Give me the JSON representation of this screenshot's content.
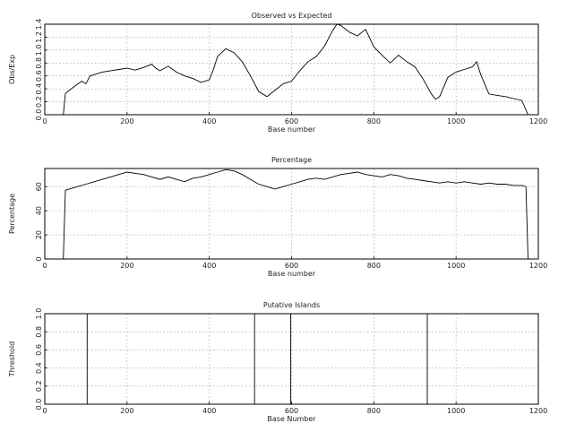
{
  "chart_data": [
    {
      "type": "line",
      "title": "Observed vs Expected",
      "xlabel": "Base number",
      "ylabel": "Obs/Exp",
      "xlim": [
        0,
        1200
      ],
      "ylim": [
        0,
        1.4
      ],
      "xticks": [
        0,
        200,
        400,
        600,
        800,
        1000,
        1200
      ],
      "yticks": [
        0,
        0.2,
        0.4,
        0.6,
        0.8,
        1.0,
        1.2,
        1.4
      ],
      "ytick_labels": [
        "0.0",
        "0.2",
        "0.4",
        "0.6",
        "0.8",
        "1.0",
        "1.2",
        "1.4"
      ],
      "grid": true,
      "x": [
        45,
        50,
        60,
        75,
        90,
        100,
        110,
        120,
        140,
        160,
        180,
        200,
        220,
        240,
        260,
        270,
        280,
        300,
        320,
        340,
        360,
        380,
        400,
        410,
        420,
        440,
        460,
        480,
        500,
        520,
        540,
        560,
        580,
        600,
        620,
        640,
        660,
        680,
        700,
        710,
        720,
        740,
        760,
        780,
        800,
        820,
        840,
        860,
        880,
        900,
        920,
        940,
        950,
        960,
        980,
        1000,
        1020,
        1040,
        1050,
        1060,
        1080,
        1100,
        1120,
        1140,
        1160,
        1175
      ],
      "series": [
        {
          "values": [
            0,
            0.33,
            0.38,
            0.45,
            0.52,
            0.48,
            0.6,
            0.62,
            0.66,
            0.68,
            0.7,
            0.72,
            0.69,
            0.73,
            0.78,
            0.72,
            0.68,
            0.75,
            0.66,
            0.6,
            0.56,
            0.5,
            0.54,
            0.7,
            0.9,
            1.02,
            0.96,
            0.82,
            0.6,
            0.36,
            0.28,
            0.38,
            0.48,
            0.52,
            0.68,
            0.82,
            0.9,
            1.06,
            1.3,
            1.4,
            1.38,
            1.28,
            1.22,
            1.32,
            1.05,
            0.92,
            0.8,
            0.92,
            0.82,
            0.74,
            0.55,
            0.32,
            0.24,
            0.28,
            0.58,
            0.66,
            0.7,
            0.74,
            0.82,
            0.62,
            0.32,
            0.3,
            0.28,
            0.25,
            0.22,
            0
          ]
        }
      ]
    },
    {
      "type": "line",
      "title": "Percentage",
      "xlabel": "Base number",
      "ylabel": "Percentage",
      "xlim": [
        0,
        1200
      ],
      "ylim": [
        0,
        75
      ],
      "xticks": [
        0,
        200,
        400,
        600,
        800,
        1000,
        1200
      ],
      "yticks": [
        0,
        20,
        40,
        60
      ],
      "ytick_labels": [
        "0",
        "20",
        "40",
        "60"
      ],
      "grid": true,
      "x": [
        45,
        50,
        60,
        80,
        100,
        120,
        140,
        160,
        180,
        200,
        220,
        240,
        260,
        280,
        300,
        320,
        340,
        360,
        380,
        400,
        420,
        440,
        460,
        480,
        500,
        520,
        540,
        560,
        580,
        600,
        620,
        640,
        660,
        680,
        700,
        720,
        740,
        760,
        780,
        800,
        820,
        840,
        860,
        880,
        900,
        920,
        940,
        960,
        980,
        1000,
        1020,
        1040,
        1060,
        1080,
        1100,
        1120,
        1140,
        1160,
        1170,
        1175
      ],
      "series": [
        {
          "values": [
            0,
            57,
            58,
            60,
            62,
            64,
            66,
            68,
            70,
            72,
            71,
            70,
            68,
            66,
            68,
            66,
            64,
            67,
            68,
            70,
            72,
            74,
            73,
            70,
            66,
            62,
            60,
            58,
            60,
            62,
            64,
            66,
            67,
            66,
            68,
            70,
            71,
            72,
            70,
            69,
            68,
            70,
            69,
            67,
            66,
            65,
            64,
            63,
            64,
            63,
            64,
            63,
            62,
            63,
            62,
            62,
            61,
            61,
            60,
            0
          ]
        }
      ]
    },
    {
      "type": "line",
      "title": "Putative Islands",
      "xlabel": "Base Number",
      "ylabel": "Threshold",
      "xlim": [
        0,
        1200
      ],
      "ylim": [
        0,
        1
      ],
      "xticks": [
        0,
        200,
        400,
        600,
        800,
        1000,
        1200
      ],
      "yticks": [
        0,
        0.2,
        0.4,
        0.6,
        0.8,
        1.0
      ],
      "ytick_labels": [
        "0.0",
        "0.2",
        "0.4",
        "0.6",
        "0.8",
        "1.0"
      ],
      "grid": true,
      "x": [
        103,
        510,
        598,
        930
      ],
      "series": [
        {
          "values": [
            1,
            1,
            1,
            1
          ]
        }
      ]
    }
  ]
}
